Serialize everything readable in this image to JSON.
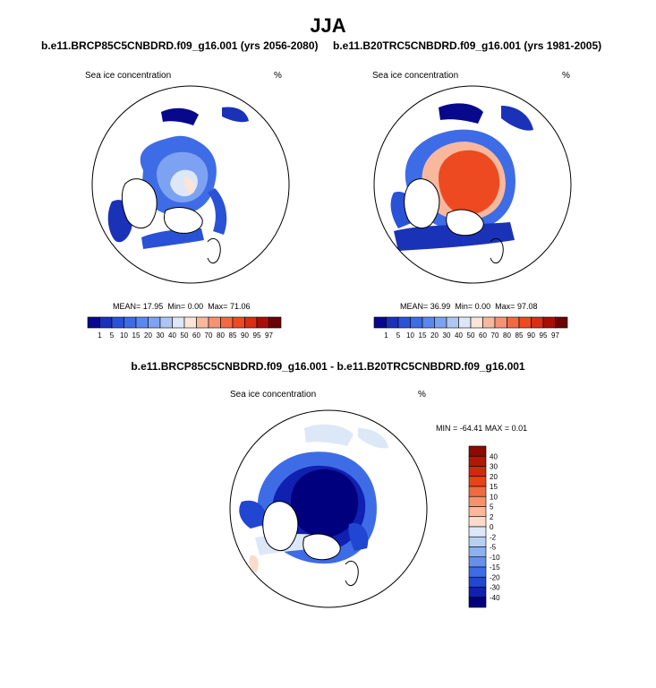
{
  "figure": {
    "season": "JJA",
    "left_case_title": "b.e11.BRCP85C5CNBDRD.f09_g16.001 (yrs 2056-2080)",
    "right_case_title": "b.e11.B20TRC5CNBDRD.f09_g16.001 (yrs 1981-2005)",
    "diff_title": "b.e11.BRCP85C5CNBDRD.f09_g16.001 - b.e11.B20TRC5CNBDRD.f09_g16.001"
  },
  "chart_data": [
    {
      "type": "heatmap",
      "projection": "north-polar-stereographic",
      "variable_label": "Sea ice concentration",
      "units": "%",
      "stats": {
        "mean_label": "MEAN=",
        "mean": "17.95",
        "min_label": "Min=",
        "min": "0.00",
        "max_label": "Max=",
        "max": "71.06"
      },
      "colorbar": {
        "orientation": "horizontal",
        "levels": [
          "1",
          "5",
          "10",
          "15",
          "20",
          "30",
          "40",
          "50",
          "60",
          "70",
          "80",
          "85",
          "90",
          "95",
          "97"
        ],
        "colors": [
          "#08088c",
          "#1a32b8",
          "#2a52d6",
          "#3e6ce6",
          "#5a88f0",
          "#7ea2f2",
          "#aec6f4",
          "#dce8f8",
          "#fbe4d8",
          "#f8b89e",
          "#f59273",
          "#f26a44",
          "#ee4a22",
          "#d82e14",
          "#a80e06",
          "#6a0404"
        ]
      }
    },
    {
      "type": "heatmap",
      "projection": "north-polar-stereographic",
      "variable_label": "Sea ice concentration",
      "units": "%",
      "stats": {
        "mean_label": "MEAN=",
        "mean": "36.99",
        "min_label": "Min=",
        "min": "0.00",
        "max_label": "Max=",
        "max": "97.08"
      },
      "colorbar": {
        "orientation": "horizontal",
        "levels": [
          "1",
          "5",
          "10",
          "15",
          "20",
          "30",
          "40",
          "50",
          "60",
          "70",
          "80",
          "85",
          "90",
          "95",
          "97"
        ],
        "colors": [
          "#08088c",
          "#1a32b8",
          "#2a52d6",
          "#3e6ce6",
          "#5a88f0",
          "#7ea2f2",
          "#aec6f4",
          "#dce8f8",
          "#fbe4d8",
          "#f8b89e",
          "#f59273",
          "#f26a44",
          "#ee4a22",
          "#d82e14",
          "#a80e06",
          "#6a0404"
        ]
      }
    },
    {
      "type": "heatmap",
      "projection": "north-polar-stereographic",
      "variable_label": "Sea ice concentration",
      "units": "%",
      "stats": {
        "min_label": "MIN =",
        "min": "-64.41",
        "max_label": "MAX =",
        "max": "0.01"
      },
      "colorbar": {
        "orientation": "vertical",
        "levels": [
          "40",
          "30",
          "20",
          "15",
          "10",
          "5",
          "2",
          "0",
          "-2",
          "-5",
          "-10",
          "-15",
          "-20",
          "-30",
          "-40"
        ],
        "colors": [
          "#8c0a02",
          "#b21806",
          "#d02a0e",
          "#e64418",
          "#f06a40",
          "#f4926c",
          "#f8b89a",
          "#fbdccc",
          "#dce8f8",
          "#b8cff2",
          "#8eb0ee",
          "#6690ea",
          "#3e6ce6",
          "#2046d2",
          "#1020b0",
          "#00007e"
        ]
      }
    }
  ]
}
